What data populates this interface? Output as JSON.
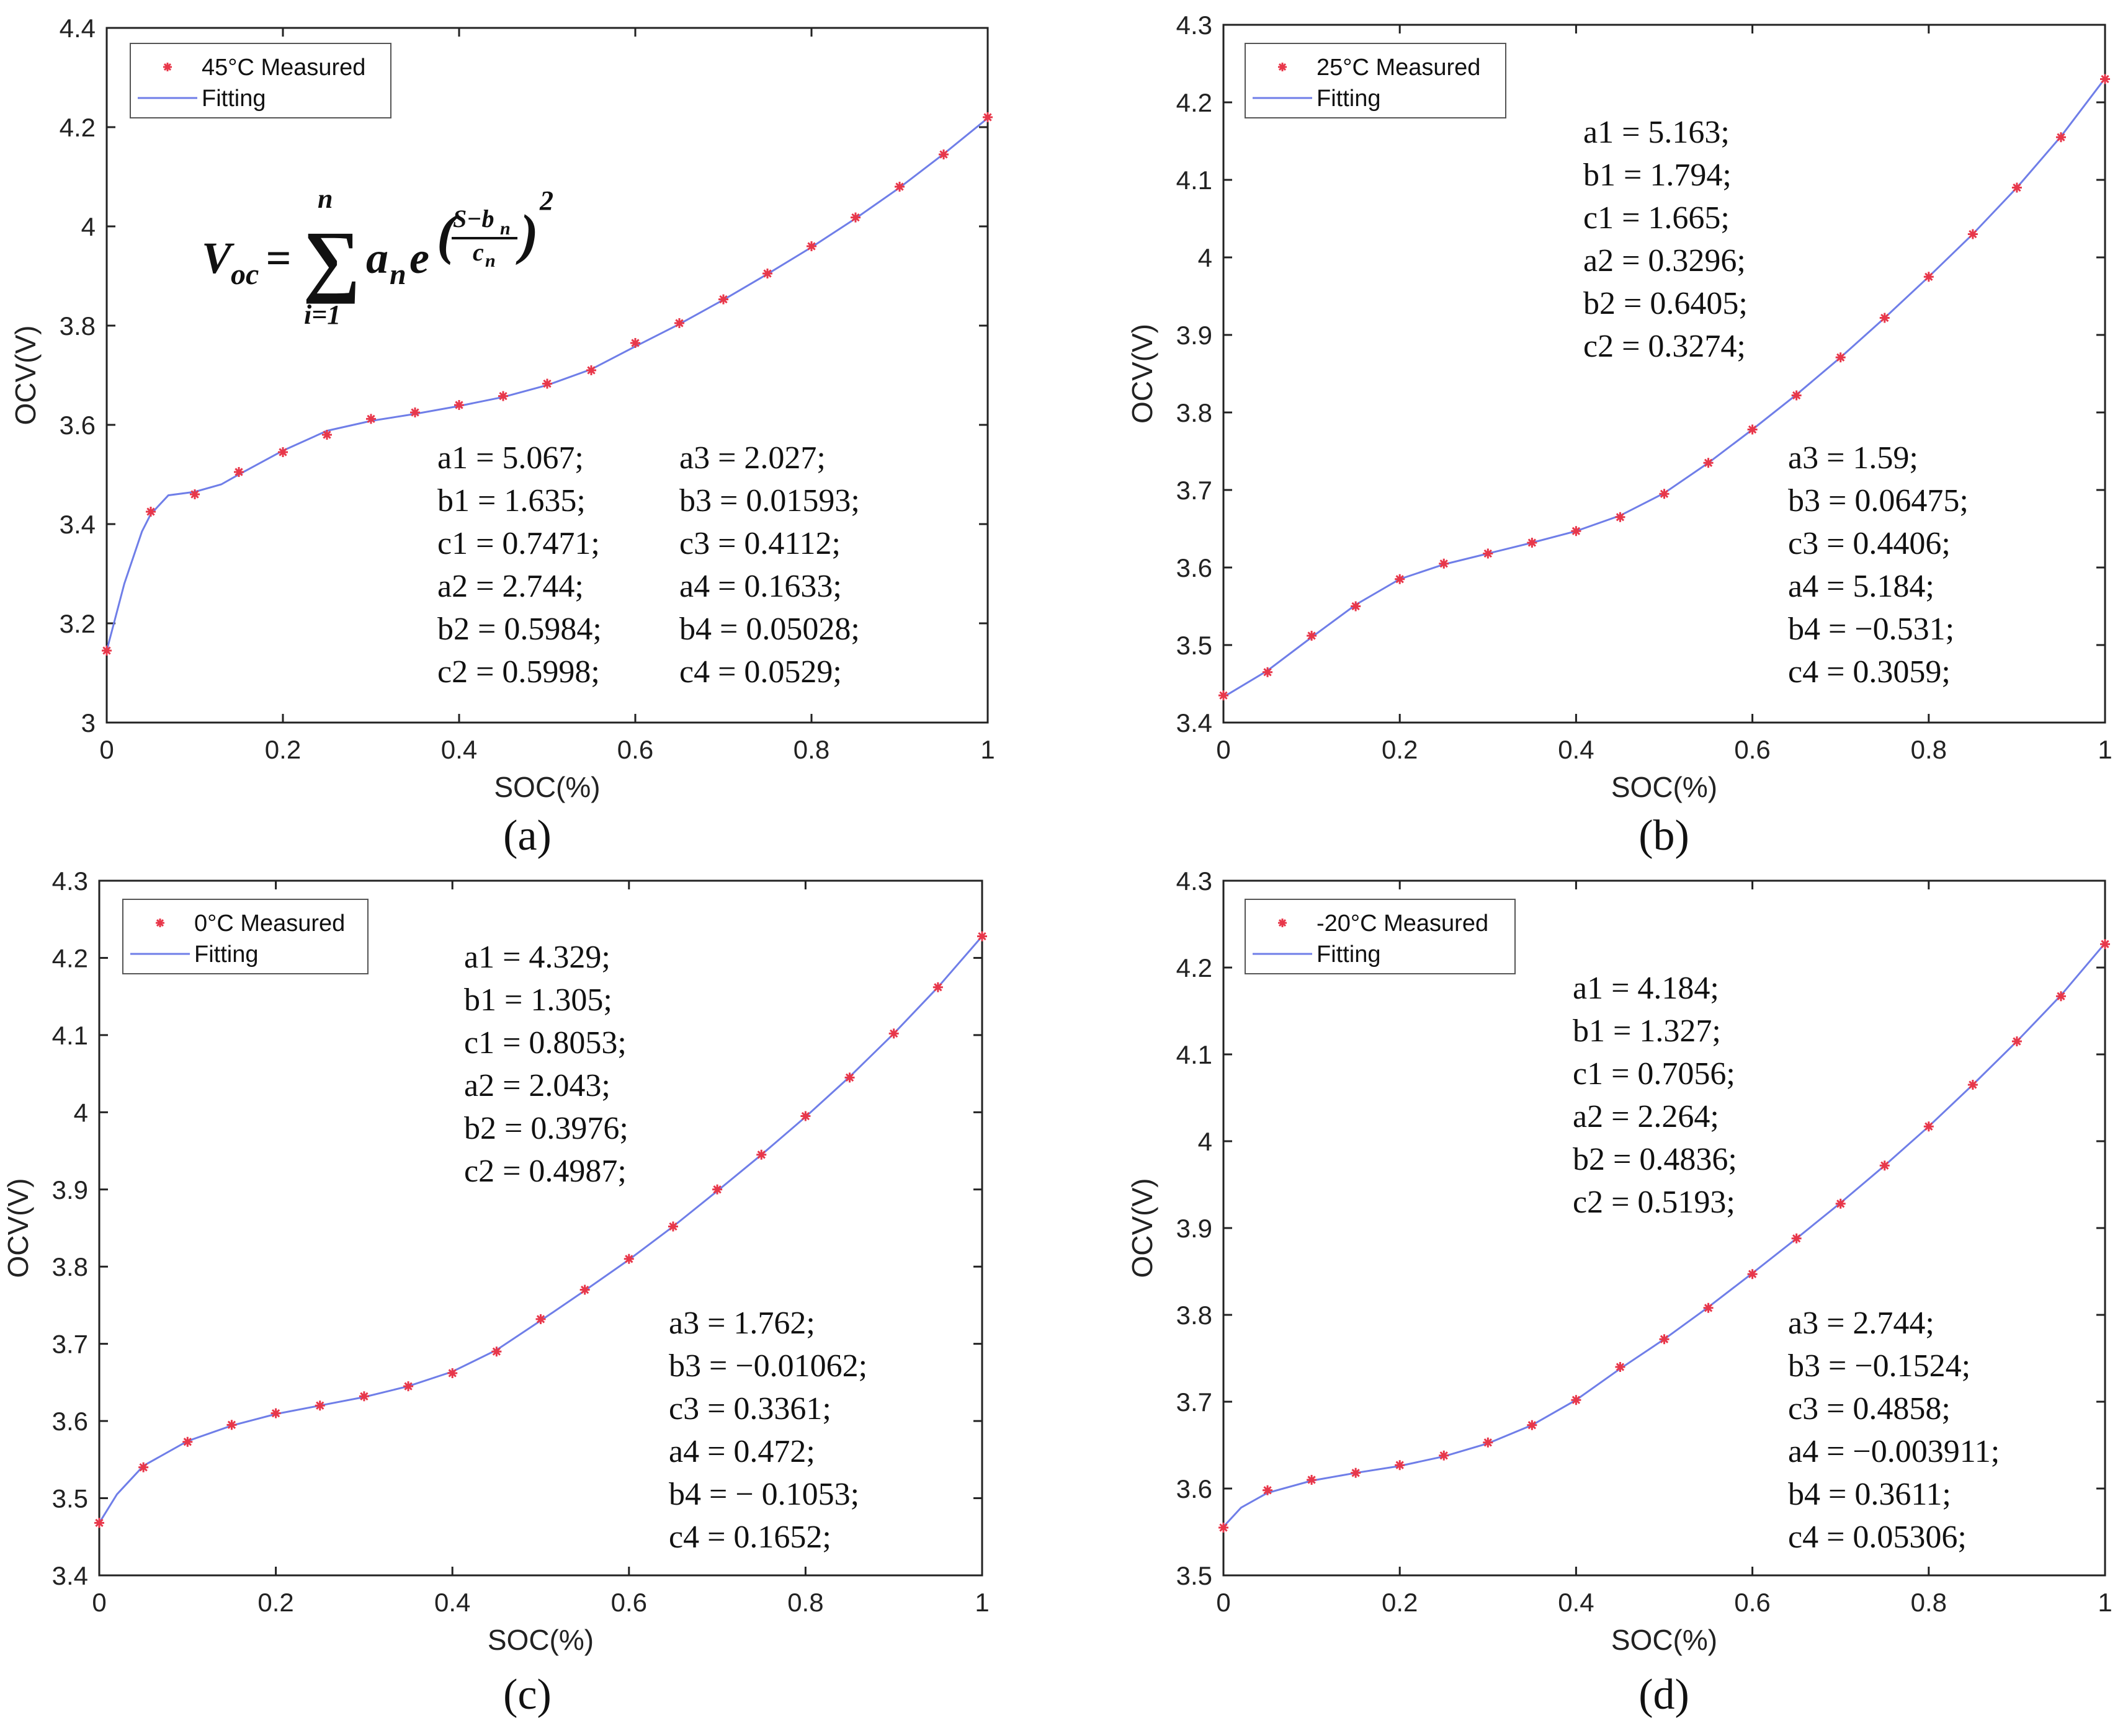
{
  "colors": {
    "measured": "#e8374a",
    "fitting": "#6f7ee8",
    "axis": "#222222",
    "legend_border": "#555555"
  },
  "equation": {
    "lhs": "V",
    "lhs_sub": "oc",
    "equals": "=",
    "sum_symbol": "∑",
    "sum_top": "n",
    "sum_bottom": "i=1",
    "term": "a",
    "term_sub": "n",
    "base": "e",
    "frac_num": "S−b",
    "frac_num_sub": "n",
    "frac_den": "c",
    "frac_den_sub": "n",
    "power": "2"
  },
  "chart_data": [
    {
      "type": "line",
      "panel_label": "(a)",
      "xlabel": "SOC(%)",
      "ylabel": "OCV(V)",
      "xlim": [
        0,
        1
      ],
      "ylim": [
        3,
        4.4
      ],
      "x_ticks": [
        "0",
        "0.2",
        "0.4",
        "0.6",
        "0.8",
        "1"
      ],
      "y_ticks": [
        "3",
        "3.2",
        "3.4",
        "3.6",
        "3.8",
        "4",
        "4.2",
        "4.4"
      ],
      "legend": {
        "measured": "45°C Measured",
        "fitting": "Fitting"
      },
      "series": [
        {
          "name": "45°C Measured",
          "x": [
            0,
            0.05,
            0.1,
            0.15,
            0.2,
            0.25,
            0.3,
            0.35,
            0.4,
            0.45,
            0.5,
            0.55,
            0.6,
            0.65,
            0.7,
            0.75,
            0.8,
            0.85,
            0.9,
            0.95,
            1
          ],
          "y": [
            3.145,
            3.425,
            3.46,
            3.505,
            3.545,
            3.58,
            3.612,
            3.625,
            3.64,
            3.658,
            3.683,
            3.71,
            3.765,
            3.805,
            3.853,
            3.905,
            3.96,
            4.018,
            4.08,
            4.145,
            4.22
          ]
        },
        {
          "name": "Fitting",
          "x": [
            0,
            0.02,
            0.04,
            0.05,
            0.07,
            0.1,
            0.13,
            0.15,
            0.2,
            0.25,
            0.3,
            0.35,
            0.4,
            0.45,
            0.5,
            0.55,
            0.6,
            0.65,
            0.7,
            0.75,
            0.8,
            0.85,
            0.9,
            0.95,
            1
          ],
          "y": [
            3.145,
            3.28,
            3.385,
            3.42,
            3.458,
            3.465,
            3.48,
            3.5,
            3.548,
            3.588,
            3.608,
            3.622,
            3.638,
            3.656,
            3.68,
            3.712,
            3.758,
            3.803,
            3.852,
            3.904,
            3.958,
            4.016,
            4.078,
            4.146,
            4.218
          ]
        }
      ],
      "params": [
        [
          "a1 = 5.067;",
          "b1 = 1.635;",
          "c1 = 0.7471;",
          "a2 = 2.744;",
          "b2 = 0.5984;",
          "c2 = 0.5998;"
        ],
        [
          "a3 = 2.027;",
          "b3 = 0.01593;",
          "c3 = 0.4112;",
          "a4 = 0.1633;",
          "b4 = 0.05028;",
          "c4 = 0.0529;"
        ]
      ]
    },
    {
      "type": "line",
      "panel_label": "(b)",
      "xlabel": "SOC(%)",
      "ylabel": "OCV(V)",
      "xlim": [
        0,
        1
      ],
      "ylim": [
        3.4,
        4.3
      ],
      "x_ticks": [
        "0",
        "0.2",
        "0.4",
        "0.6",
        "0.8",
        "1"
      ],
      "y_ticks": [
        "3.4",
        "3.5",
        "3.6",
        "3.7",
        "3.8",
        "3.9",
        "4",
        "4.1",
        "4.2",
        "4.3"
      ],
      "legend": {
        "measured": "25°C Measured",
        "fitting": "Fitting"
      },
      "series": [
        {
          "name": "25°C Measured",
          "x": [
            0,
            0.05,
            0.1,
            0.15,
            0.2,
            0.25,
            0.3,
            0.35,
            0.4,
            0.45,
            0.5,
            0.55,
            0.6,
            0.65,
            0.7,
            0.75,
            0.8,
            0.85,
            0.9,
            0.95,
            1
          ],
          "y": [
            3.435,
            3.465,
            3.512,
            3.55,
            3.585,
            3.605,
            3.618,
            3.632,
            3.647,
            3.665,
            3.695,
            3.735,
            3.778,
            3.822,
            3.871,
            3.922,
            3.975,
            4.03,
            4.09,
            4.155,
            4.23
          ]
        },
        {
          "name": "Fitting",
          "x": [
            0,
            0.05,
            0.1,
            0.15,
            0.2,
            0.25,
            0.3,
            0.35,
            0.4,
            0.45,
            0.5,
            0.55,
            0.6,
            0.65,
            0.7,
            0.75,
            0.8,
            0.85,
            0.9,
            0.95,
            1
          ],
          "y": [
            3.433,
            3.467,
            3.51,
            3.552,
            3.585,
            3.604,
            3.618,
            3.632,
            3.647,
            3.667,
            3.696,
            3.735,
            3.778,
            3.823,
            3.871,
            3.922,
            3.975,
            4.03,
            4.09,
            4.156,
            4.231
          ]
        }
      ],
      "params": [
        [
          "a1 = 5.163;",
          "b1 = 1.794;",
          "c1 = 1.665;",
          "a2 = 0.3296;",
          "b2 = 0.6405;",
          "c2 = 0.3274;"
        ],
        [
          "a3 = 1.59;",
          "b3 = 0.06475;",
          "c3 = 0.4406;",
          "a4 = 5.184;",
          "b4 = −0.531;",
          "c4 = 0.3059;"
        ]
      ]
    },
    {
      "type": "line",
      "panel_label": "(c)",
      "xlabel": "SOC(%)",
      "ylabel": "OCV(V)",
      "xlim": [
        0,
        1
      ],
      "ylim": [
        3.4,
        4.3
      ],
      "x_ticks": [
        "0",
        "0.2",
        "0.4",
        "0.6",
        "0.8",
        "1"
      ],
      "y_ticks": [
        "3.4",
        "3.5",
        "3.6",
        "3.7",
        "3.8",
        "3.9",
        "4",
        "4.1",
        "4.2",
        "4.3"
      ],
      "legend": {
        "measured": "0°C Measured",
        "fitting": "Fitting"
      },
      "series": [
        {
          "name": "0°C Measured",
          "x": [
            0,
            0.05,
            0.1,
            0.15,
            0.2,
            0.25,
            0.3,
            0.35,
            0.4,
            0.45,
            0.5,
            0.55,
            0.6,
            0.65,
            0.7,
            0.75,
            0.8,
            0.85,
            0.9,
            0.95,
            1
          ],
          "y": [
            3.468,
            3.54,
            3.573,
            3.595,
            3.61,
            3.62,
            3.632,
            3.645,
            3.662,
            3.69,
            3.732,
            3.77,
            3.81,
            3.852,
            3.9,
            3.945,
            3.995,
            4.045,
            4.102,
            4.162,
            4.228
          ]
        },
        {
          "name": "Fitting",
          "x": [
            0,
            0.02,
            0.05,
            0.1,
            0.15,
            0.2,
            0.25,
            0.3,
            0.35,
            0.4,
            0.45,
            0.5,
            0.55,
            0.6,
            0.65,
            0.7,
            0.75,
            0.8,
            0.85,
            0.9,
            0.95,
            1
          ],
          "y": [
            3.468,
            3.505,
            3.542,
            3.574,
            3.594,
            3.609,
            3.62,
            3.631,
            3.645,
            3.664,
            3.692,
            3.73,
            3.769,
            3.809,
            3.852,
            3.898,
            3.945,
            3.994,
            4.046,
            4.102,
            4.162,
            4.228
          ]
        }
      ],
      "params": [
        [
          "a1 = 4.329;",
          "b1 = 1.305;",
          "c1 = 0.8053;",
          "a2 = 2.043;",
          "b2 = 0.3976;",
          "c2 = 0.4987;"
        ],
        [
          "a3 = 1.762;",
          "b3 = −0.01062;",
          "c3 = 0.3361;",
          "a4 = 0.472;",
          "b4 = − 0.1053;",
          "c4 = 0.1652;"
        ]
      ]
    },
    {
      "type": "line",
      "panel_label": "(d)",
      "xlabel": "SOC(%)",
      "ylabel": "OCV(V)",
      "xlim": [
        0,
        1
      ],
      "ylim": [
        3.5,
        4.3
      ],
      "x_ticks": [
        "0",
        "0.2",
        "0.4",
        "0.6",
        "0.8",
        "1"
      ],
      "y_ticks": [
        "3.5",
        "3.6",
        "3.7",
        "3.8",
        "3.9",
        "4",
        "4.1",
        "4.2",
        "4.3"
      ],
      "legend": {
        "measured": "-20°C Measured",
        "fitting": "Fitting"
      },
      "series": [
        {
          "name": "-20°C Measured",
          "x": [
            0,
            0.05,
            0.1,
            0.15,
            0.2,
            0.25,
            0.3,
            0.35,
            0.4,
            0.45,
            0.5,
            0.55,
            0.6,
            0.65,
            0.7,
            0.75,
            0.8,
            0.85,
            0.9,
            0.95,
            1
          ],
          "y": [
            3.555,
            3.598,
            3.61,
            3.618,
            3.627,
            3.638,
            3.653,
            3.673,
            3.702,
            3.74,
            3.772,
            3.808,
            3.847,
            3.888,
            3.928,
            3.972,
            4.017,
            4.065,
            4.115,
            4.167,
            4.227
          ]
        },
        {
          "name": "Fitting",
          "x": [
            0,
            0.02,
            0.05,
            0.1,
            0.15,
            0.2,
            0.25,
            0.3,
            0.35,
            0.4,
            0.45,
            0.5,
            0.55,
            0.6,
            0.65,
            0.7,
            0.75,
            0.8,
            0.85,
            0.9,
            0.95,
            1
          ],
          "y": [
            3.556,
            3.578,
            3.595,
            3.609,
            3.618,
            3.626,
            3.637,
            3.652,
            3.673,
            3.702,
            3.738,
            3.772,
            3.809,
            3.848,
            3.888,
            3.929,
            3.972,
            4.017,
            4.065,
            4.115,
            4.168,
            4.228
          ]
        }
      ],
      "params": [
        [
          "a1 = 4.184;",
          "b1 = 1.327;",
          "c1 = 0.7056;",
          "a2 = 2.264;",
          "b2 = 0.4836;",
          "c2 = 0.5193;"
        ],
        [
          "a3 = 2.744;",
          "b3 = −0.1524;",
          "c3 = 0.4858;",
          "a4 = −0.003911;",
          "b4 = 0.3611;",
          "c4 = 0.05306;"
        ]
      ]
    }
  ]
}
